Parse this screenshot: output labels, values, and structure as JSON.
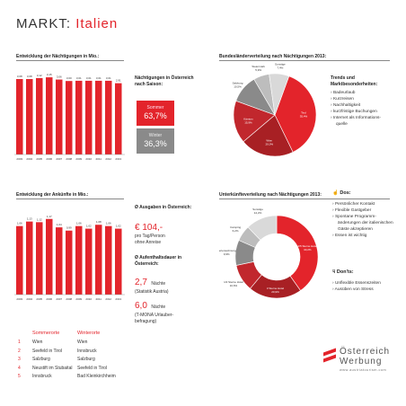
{
  "header": {
    "title_prefix": "MARKT:",
    "title_country": "Italien"
  },
  "colors": {
    "accent": "#e3242b",
    "dark_red": "#a82024",
    "mid_red": "#c1272d",
    "grey": "#8a8a8a",
    "light_grey": "#bdbdbd",
    "pale_grey": "#d9d9d9"
  },
  "chart_data": [
    {
      "type": "bar",
      "title": "Entwicklung der Nächtigungen in Mio.:",
      "categories": [
        "2003",
        "2004",
        "2005",
        "2006",
        "2007",
        "2008",
        "2009",
        "2010",
        "2011",
        "2012",
        "2013"
      ],
      "values": [
        3.08,
        3.08,
        3.12,
        3.15,
        3.06,
        3.0,
        3.01,
        3.01,
        3.01,
        3.01,
        2.91
      ],
      "value_labels": [
        "3,08",
        "3,08",
        "3,12",
        "3,15",
        "3,06",
        "3,00",
        "3,01",
        "3,01",
        "3,01",
        "3,01",
        "2,91"
      ],
      "ylim": [
        0,
        3.3
      ]
    },
    {
      "type": "bar",
      "title": "Entwicklung der Ankünfte in Mio.:",
      "categories": [
        "2003",
        "2004",
        "2005",
        "2006",
        "2007",
        "2008",
        "2009",
        "2010",
        "2011",
        "2012",
        "2013"
      ],
      "values": [
        1.06,
        1.13,
        1.12,
        1.17,
        1.04,
        0.99,
        1.06,
        1.02,
        1.08,
        1.06,
        1.02
      ],
      "value_labels": [
        "1,06",
        "1,13",
        "1,12",
        "1,17",
        "1,04",
        "0,99",
        "1,06",
        "1,02",
        "1,08",
        "1,06",
        "1,02"
      ],
      "ylim": [
        0,
        1.25
      ]
    },
    {
      "type": "pie",
      "title": "Bundesländerverteilung nach Nächtigungen 2013:",
      "slices": [
        {
          "label": "Tirol",
          "value": 35.4,
          "value_label": "35,4%",
          "color": "#e3242b"
        },
        {
          "label": "Wien",
          "value": 20.0,
          "value_label": "20,0%",
          "color": "#a82024"
        },
        {
          "label": "Kärnten",
          "value": 15.9,
          "value_label": "15,9%",
          "color": "#c1272d"
        },
        {
          "label": "Salzburg",
          "value": 10.5,
          "value_label": "10,5%",
          "color": "#8a8a8a"
        },
        {
          "label": "Steiermark",
          "value": 5.9,
          "value_label": "5,9%",
          "color": "#bdbdbd"
        },
        {
          "label": "Sonstige",
          "value": 7.4,
          "value_label": "7,4%",
          "color": "#d9d9d9"
        }
      ]
    },
    {
      "type": "pie",
      "title": "Unterkünfteverteilung nach Nächtigungen 2013:",
      "donut": true,
      "slices": [
        {
          "label": "4/5 Sterne Hotel",
          "value": 40.2,
          "value_label": "40,2%",
          "color": "#e3242b"
        },
        {
          "label": "3 Sterne Hotel",
          "value": 20.9,
          "value_label": "20,9%",
          "color": "#a82024"
        },
        {
          "label": "1/2 Sterne Hotel",
          "value": 10.6,
          "value_label": "10,6%",
          "color": "#c1272d"
        },
        {
          "label": "Ferienwohnung",
          "value": 9.9,
          "value_label": "9,9%",
          "color": "#8a8a8a"
        },
        {
          "label": "Camping",
          "value": 6.2,
          "value_label": "6,2%",
          "color": "#bdbdbd"
        },
        {
          "label": "Sonstige",
          "value": 12.2,
          "value_label": "12,2%",
          "color": "#d9d9d9"
        }
      ]
    }
  ],
  "saison": {
    "title": "Nächtigungen in Österreich nach Saison:",
    "sommer_label": "Sommer",
    "sommer_value": "63,7%",
    "sommer_share": 63.7,
    "winter_label": "Winter",
    "winter_value": "36,3%",
    "winter_share": 36.3
  },
  "ausgaben": {
    "title": "Ø Ausgaben in Österreich:",
    "value": "€ 104,-",
    "note1": "pro Tag/Person",
    "note2": "ohne Anreise"
  },
  "aufenthalt": {
    "title": "Ø Aufenthaltsdauer in Österreich:",
    "value1": "2,7",
    "unit1": "Nächte",
    "note1": "(Statistik Austria)",
    "value2": "6,0",
    "unit2": "Nächte",
    "note2": "(T-MONA Urlauber-",
    "note3": "befragung)"
  },
  "trends": {
    "title": "Trends und Marktbesonderheiten:",
    "items": [
      "Badeurlaub",
      "Kurzreisen",
      "Nachhaltigkeit",
      "kurzfristige Buchungen",
      "Internet als Informations-",
      "quelle"
    ]
  },
  "dos": {
    "title": "Dos:",
    "items": [
      "Persönlicher Kontakt",
      "Flexible Gastgeber",
      "Spontane Programm-",
      "änderungen der italienischen",
      "Gäste akzeptieren",
      "Essen ist wichtig"
    ]
  },
  "donts": {
    "title": "Don'ts:",
    "items": [
      "Unflexible Essenszeiten",
      "Ausüben von Stress"
    ]
  },
  "orte": {
    "header_sommer": "Sommerorte",
    "header_winter": "Winterorte",
    "rows": [
      {
        "num": "1",
        "sommer": "Wien",
        "winter": "Wien"
      },
      {
        "num": "2",
        "sommer": "Seefeld in Tirol",
        "winter": "Innsbruck"
      },
      {
        "num": "3",
        "sommer": "Salzburg",
        "winter": "Salzburg"
      },
      {
        "num": "4",
        "sommer": "Neustift im Stubaital",
        "winter": "Seefeld in Tirol"
      },
      {
        "num": "5",
        "sommer": "Innsbruck",
        "winter": "Bad Kleinkirchheim"
      }
    ]
  },
  "logo": {
    "line1": "Österreich",
    "line2": "Werbung",
    "url": "www.austriatourism.com"
  }
}
